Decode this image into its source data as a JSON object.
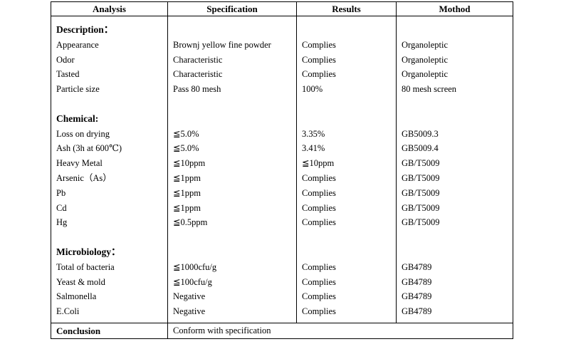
{
  "headers": {
    "analysis": "Analysis",
    "specification": "Specification",
    "results": "Results",
    "method": "Mothod"
  },
  "sections": [
    {
      "title": "Description：",
      "rows": [
        {
          "analysis": "Appearance",
          "specification": "Brownj yellow fine powder",
          "result": "Complies",
          "method": "Organoleptic"
        },
        {
          "analysis": "Odor",
          "specification": "Characteristic",
          "result": "Complies",
          "method": "Organoleptic"
        },
        {
          "analysis": "Tasted",
          "specification": "Characteristic",
          "result": "Complies",
          "method": "Organoleptic"
        },
        {
          "analysis": "Particle size",
          "specification": "Pass 80 mesh",
          "result": "100%",
          "method": "80 mesh screen"
        }
      ]
    },
    {
      "title": "Chemical:",
      "rows": [
        {
          "analysis": "Loss on drying",
          "specification": "≦5.0%",
          "result": "3.35%",
          "method": "GB5009.3"
        },
        {
          "analysis": "Ash (3h at 600℃)",
          "specification": "≦5.0%",
          "result": "3.41%",
          "method": "GB5009.4"
        },
        {
          "analysis": "Heavy Metal",
          "specification": "≦10ppm",
          "result": "≦10ppm",
          "method": "GB/T5009"
        },
        {
          "analysis": "Arsenic（As）",
          "specification": "≦1ppm",
          "result": "Complies",
          "method": "GB/T5009"
        },
        {
          "analysis": "Pb",
          "specification": "≦1ppm",
          "result": "Complies",
          "method": "GB/T5009"
        },
        {
          "analysis": "Cd",
          "specification": "≦1ppm",
          "result": "Complies",
          "method": "GB/T5009"
        },
        {
          "analysis": "Hg",
          "specification": "≦0.5ppm",
          "result": "Complies",
          "method": "GB/T5009"
        }
      ]
    },
    {
      "title": "Microbiology：",
      "rows": [
        {
          "analysis": "Total of bacteria",
          "specification": "≦1000cfu/g",
          "result": "Complies",
          "method": "GB4789"
        },
        {
          "analysis": "Yeast &amp; mold",
          "specification": "≦100cfu/g",
          "result": "Complies",
          "method": "GB4789"
        },
        {
          "analysis": "Salmonella",
          "specification": "Negative",
          "result": "Complies",
          "method": "GB4789"
        },
        {
          "analysis": "E.Coli",
          "specification": "Negative",
          "result": "Complies",
          "method": "GB4789"
        }
      ]
    }
  ],
  "conclusion": {
    "label": "Conclusion",
    "value": "Conform with specification"
  }
}
